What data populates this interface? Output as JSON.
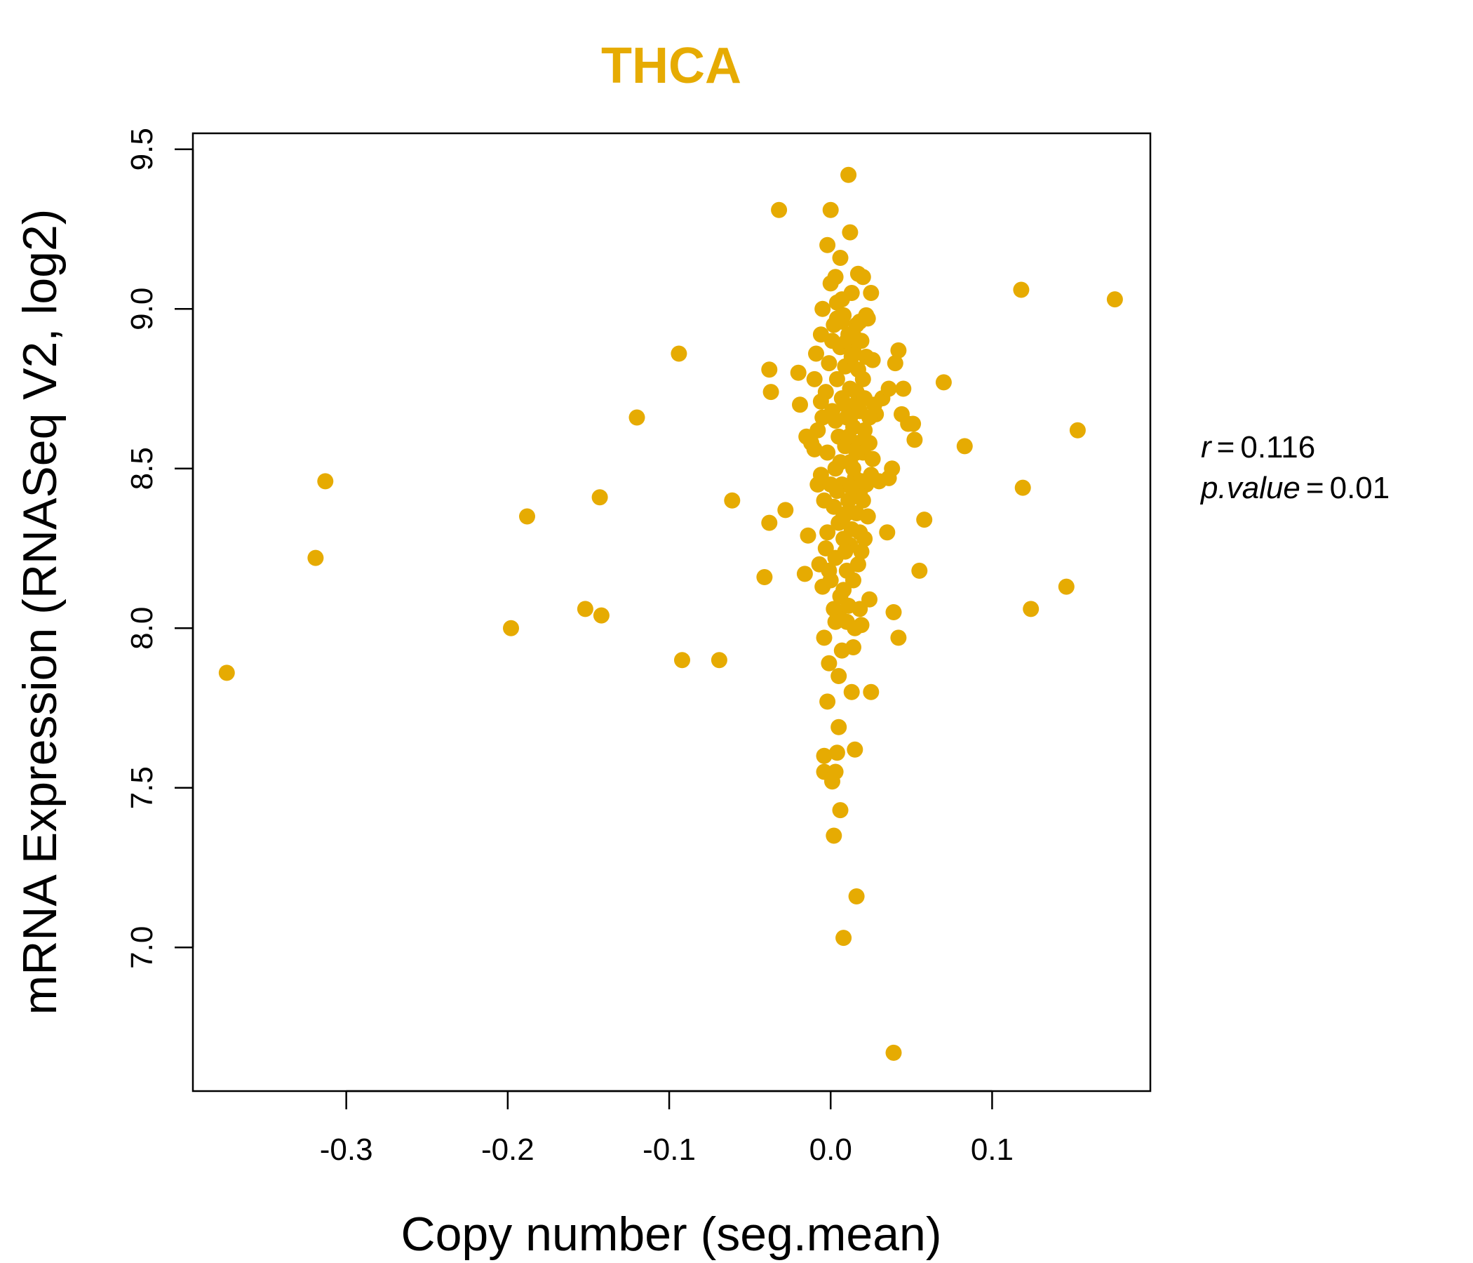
{
  "chart_data": {
    "type": "scatter",
    "title": "THCA",
    "xlabel": "Copy number (seg.mean)",
    "ylabel": "mRNA Expression (RNASeq V2, log2)",
    "xlim": [
      -0.395,
      0.198
    ],
    "ylim": [
      6.55,
      9.55
    ],
    "x_ticks": [
      -0.3,
      -0.2,
      -0.1,
      0.0,
      0.1
    ],
    "x_tick_labels": [
      "-0.3",
      "-0.2",
      "-0.1",
      "0.0",
      "0.1"
    ],
    "y_ticks": [
      7.0,
      7.5,
      8.0,
      8.5,
      9.0,
      9.5
    ],
    "y_tick_labels": [
      "7.0",
      "7.5",
      "8.0",
      "8.5",
      "9.0",
      "9.5"
    ],
    "point_color": "#E6AB02",
    "stats": {
      "r_label": "r",
      "r_value": "0.116",
      "p_label": "p.value",
      "p_value": "0.01"
    },
    "points": [
      [
        -0.374,
        7.86
      ],
      [
        -0.319,
        8.22
      ],
      [
        -0.313,
        8.46
      ],
      [
        -0.198,
        8.0
      ],
      [
        -0.188,
        8.35
      ],
      [
        -0.152,
        8.06
      ],
      [
        -0.143,
        8.41
      ],
      [
        -0.142,
        8.04
      ],
      [
        -0.12,
        8.66
      ],
      [
        -0.094,
        8.86
      ],
      [
        -0.092,
        7.9
      ],
      [
        -0.069,
        7.9
      ],
      [
        -0.061,
        8.4
      ],
      [
        -0.041,
        8.16
      ],
      [
        -0.038,
        8.81
      ],
      [
        -0.037,
        8.74
      ],
      [
        -0.038,
        8.33
      ],
      [
        -0.032,
        9.31
      ],
      [
        -0.028,
        8.37
      ],
      [
        -0.02,
        8.8
      ],
      [
        -0.019,
        8.7
      ],
      [
        -0.016,
        8.17
      ],
      [
        -0.015,
        8.6
      ],
      [
        -0.014,
        8.29
      ],
      [
        -0.012,
        8.58
      ],
      [
        -0.01,
        8.78
      ],
      [
        -0.008,
        8.45
      ],
      [
        -0.006,
        8.71
      ],
      [
        -0.005,
        8.13
      ],
      [
        -0.004,
        7.97
      ],
      [
        -0.004,
        7.6
      ],
      [
        -0.004,
        7.55
      ],
      [
        -0.002,
        9.2
      ],
      [
        -0.002,
        7.77
      ],
      [
        -0.001,
        7.89
      ],
      [
        0.0,
        9.31
      ],
      [
        0.001,
        7.52
      ],
      [
        0.002,
        7.35
      ],
      [
        0.003,
        7.55
      ],
      [
        0.004,
        7.61
      ],
      [
        0.005,
        7.85
      ],
      [
        0.005,
        7.69
      ],
      [
        0.006,
        9.16
      ],
      [
        0.006,
        7.43
      ],
      [
        0.007,
        7.93
      ],
      [
        0.008,
        7.03
      ],
      [
        0.01,
        8.02
      ],
      [
        0.011,
        9.42
      ],
      [
        0.012,
        9.24
      ],
      [
        0.013,
        7.8
      ],
      [
        0.014,
        7.94
      ],
      [
        0.015,
        7.62
      ],
      [
        0.015,
        8.0
      ],
      [
        0.016,
        7.16
      ],
      [
        0.017,
        9.11
      ],
      [
        0.018,
        8.06
      ],
      [
        0.019,
        8.01
      ],
      [
        0.02,
        9.1
      ],
      [
        0.021,
        8.28
      ],
      [
        0.022,
        8.45
      ],
      [
        0.023,
        8.97
      ],
      [
        0.024,
        8.09
      ],
      [
        0.025,
        9.05
      ],
      [
        0.025,
        7.8
      ],
      [
        0.026,
        8.53
      ],
      [
        0.028,
        8.67
      ],
      [
        0.03,
        8.46
      ],
      [
        0.032,
        8.72
      ],
      [
        0.035,
        8.3
      ],
      [
        0.036,
        8.75
      ],
      [
        0.036,
        8.47
      ],
      [
        0.038,
        8.5
      ],
      [
        0.039,
        8.05
      ],
      [
        0.04,
        8.83
      ],
      [
        0.042,
        7.97
      ],
      [
        0.042,
        8.87
      ],
      [
        0.044,
        8.67
      ],
      [
        0.045,
        8.75
      ],
      [
        0.048,
        8.64
      ],
      [
        0.051,
        8.64
      ],
      [
        0.052,
        8.59
      ],
      [
        0.055,
        8.18
      ],
      [
        0.058,
        8.34
      ],
      [
        0.039,
        6.67
      ],
      [
        0.07,
        8.77
      ],
      [
        0.083,
        8.57
      ],
      [
        0.118,
        9.06
      ],
      [
        0.119,
        8.44
      ],
      [
        0.124,
        8.06
      ],
      [
        0.146,
        8.13
      ],
      [
        0.153,
        8.62
      ],
      [
        0.176,
        9.03
      ],
      [
        -0.008,
        8.62
      ],
      [
        -0.006,
        8.92
      ],
      [
        -0.005,
        9.0
      ],
      [
        -0.004,
        8.4
      ],
      [
        -0.003,
        8.25
      ],
      [
        -0.002,
        8.55
      ],
      [
        -0.001,
        8.83
      ],
      [
        0.0,
        9.08
      ],
      [
        0.0,
        8.15
      ],
      [
        0.001,
        8.68
      ],
      [
        0.002,
        8.38
      ],
      [
        0.002,
        8.95
      ],
      [
        0.003,
        8.22
      ],
      [
        0.003,
        8.5
      ],
      [
        0.004,
        8.78
      ],
      [
        0.004,
        9.02
      ],
      [
        0.005,
        8.33
      ],
      [
        0.005,
        8.6
      ],
      [
        0.006,
        8.88
      ],
      [
        0.006,
        8.1
      ],
      [
        0.007,
        8.45
      ],
      [
        0.007,
        8.72
      ],
      [
        0.008,
        8.98
      ],
      [
        0.008,
        8.28
      ],
      [
        0.009,
        8.57
      ],
      [
        0.009,
        8.82
      ],
      [
        0.01,
        8.18
      ],
      [
        0.01,
        8.66
      ],
      [
        0.011,
        8.92
      ],
      [
        0.011,
        8.4
      ],
      [
        0.012,
        8.75
      ],
      [
        0.012,
        8.52
      ],
      [
        0.013,
        9.05
      ],
      [
        0.013,
        8.31
      ],
      [
        0.014,
        8.63
      ],
      [
        0.014,
        8.87
      ],
      [
        0.015,
        8.47
      ],
      [
        0.015,
        8.7
      ],
      [
        0.016,
        8.36
      ],
      [
        0.016,
        8.95
      ],
      [
        0.017,
        8.58
      ],
      [
        0.017,
        8.81
      ],
      [
        0.018,
        8.42
      ],
      [
        0.018,
        8.68
      ],
      [
        0.019,
        8.9
      ],
      [
        0.019,
        8.24
      ],
      [
        0.02,
        8.55
      ],
      [
        0.02,
        8.78
      ],
      [
        0.021,
        8.62
      ],
      [
        0.022,
        8.85
      ],
      [
        0.023,
        8.35
      ],
      [
        0.024,
        8.58
      ],
      [
        -0.007,
        8.2
      ],
      [
        -0.006,
        8.48
      ],
      [
        -0.003,
        8.74
      ],
      [
        -0.002,
        8.3
      ],
      [
        0.001,
        8.9
      ],
      [
        0.002,
        8.06
      ],
      [
        0.003,
        8.65
      ],
      [
        0.004,
        8.43
      ],
      [
        0.006,
        8.52
      ],
      [
        0.007,
        8.96
      ],
      [
        0.008,
        8.12
      ],
      [
        0.009,
        8.7
      ],
      [
        0.01,
        8.36
      ],
      [
        0.011,
        8.6
      ],
      [
        0.012,
        8.26
      ],
      [
        0.013,
        8.85
      ],
      [
        0.014,
        8.5
      ],
      [
        0.016,
        8.74
      ],
      [
        0.017,
        8.2
      ],
      [
        0.018,
        8.96
      ],
      [
        0.019,
        8.46
      ],
      [
        0.021,
        8.72
      ],
      [
        -0.009,
        8.86
      ],
      [
        -0.005,
        8.66
      ],
      [
        0.0,
        8.45
      ],
      [
        0.003,
        9.1
      ],
      [
        0.005,
        8.05
      ],
      [
        0.008,
        8.35
      ],
      [
        0.01,
        8.9
      ],
      [
        0.012,
        8.66
      ],
      [
        0.014,
        8.15
      ],
      [
        0.016,
        8.55
      ],
      [
        0.018,
        8.3
      ],
      [
        0.02,
        8.4
      ],
      [
        0.022,
        8.98
      ],
      [
        0.025,
        8.48
      ],
      [
        0.027,
        8.7
      ],
      [
        -0.01,
        8.56
      ],
      [
        -0.001,
        8.18
      ],
      [
        0.004,
        8.97
      ],
      [
        0.009,
        8.24
      ],
      [
        0.015,
        8.91
      ],
      [
        0.024,
        8.66
      ],
      [
        0.026,
        8.84
      ],
      [
        0.003,
        8.02
      ],
      [
        0.011,
        8.07
      ],
      [
        0.007,
        9.03
      ],
      [
        0.013,
        8.44
      ]
    ]
  }
}
